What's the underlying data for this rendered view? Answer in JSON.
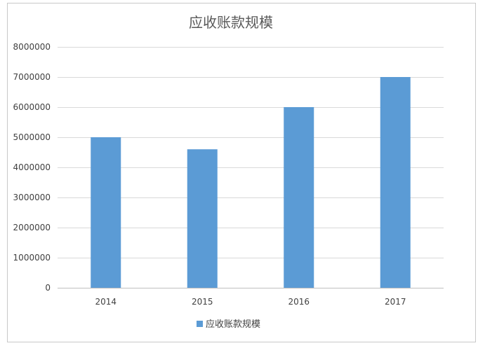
{
  "chart_data": {
    "type": "bar",
    "title": "应收账款规模",
    "xlabel": "",
    "ylabel": "",
    "categories": [
      "2014",
      "2015",
      "2016",
      "2017"
    ],
    "series": [
      {
        "name": "应收账款规模",
        "values": [
          5000000,
          4600000,
          6000000,
          7000000
        ],
        "color": "#5b9bd5"
      }
    ],
    "ylim": [
      0,
      8000000
    ],
    "yticks": [
      0,
      1000000,
      2000000,
      3000000,
      4000000,
      5000000,
      6000000,
      7000000,
      8000000
    ],
    "ytick_labels": [
      "0",
      "1000000",
      "2000000",
      "3000000",
      "4000000",
      "5000000",
      "6000000",
      "7000000",
      "8000000"
    ],
    "grid": true,
    "legend_position": "bottom",
    "colors": {
      "bar": "#5b9bd5",
      "gridline": "#d9d9d9",
      "axis": "#bfbfbf"
    }
  }
}
